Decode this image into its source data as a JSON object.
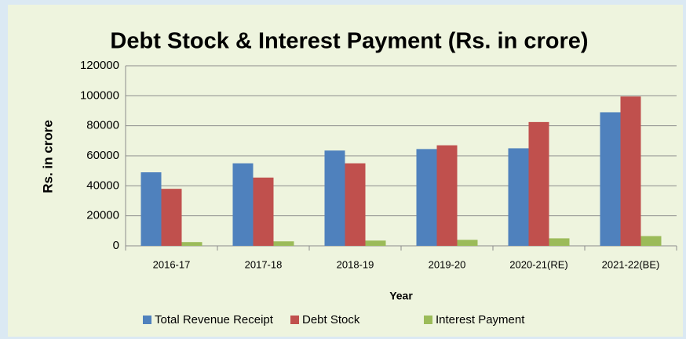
{
  "chart_data": {
    "type": "bar",
    "title": "Debt Stock & Interest Payment (Rs. in crore)",
    "x_label": "Year",
    "y_label": "Rs. in crore",
    "categories": [
      "2016-17",
      "2017-18",
      "2018-19",
      "2019-20",
      "2020-21(RE)",
      "2021-22(BE)"
    ],
    "series": [
      {
        "name": "Total Revenue Receipt",
        "color": "#4f81bd",
        "values": [
          49000,
          55000,
          63500,
          64500,
          65000,
          89000
        ]
      },
      {
        "name": "Debt Stock",
        "color": "#c0504d",
        "values": [
          38000,
          45500,
          55000,
          67000,
          82500,
          99500
        ]
      },
      {
        "name": "Interest Payment",
        "color": "#9bbb59",
        "values": [
          2500,
          3000,
          3500,
          4000,
          5000,
          6500
        ]
      }
    ],
    "ylim": [
      0,
      120000
    ],
    "yticks": [
      0,
      20000,
      40000,
      60000,
      80000,
      100000,
      120000
    ],
    "grid": true,
    "legend": "bottom"
  }
}
